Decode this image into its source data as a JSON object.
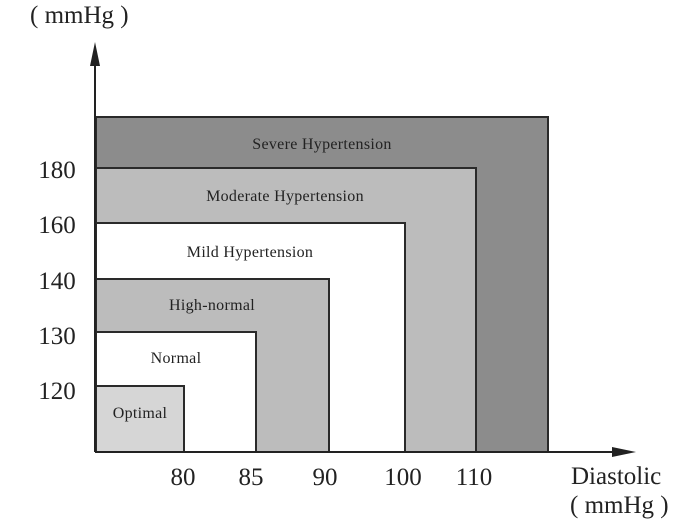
{
  "y_axis": {
    "unit": "( mmHg )",
    "ticks": [
      "120",
      "130",
      "140",
      "160",
      "180"
    ]
  },
  "x_axis": {
    "label": "Diastolic",
    "unit": "( mmHg )",
    "ticks": [
      "80",
      "85",
      "90",
      "100",
      "110"
    ]
  },
  "zones": [
    {
      "label": "Severe Hypertension",
      "color": "#8c8c8c"
    },
    {
      "label": "Moderate Hypertension",
      "color": "#bcbcbc"
    },
    {
      "label": "Mild Hypertension",
      "color": "#ffffff"
    },
    {
      "label": "High-normal",
      "color": "#bcbcbc"
    },
    {
      "label": "Normal",
      "color": "#ffffff"
    },
    {
      "label": "Optimal",
      "color": "#d6d6d6"
    }
  ]
}
